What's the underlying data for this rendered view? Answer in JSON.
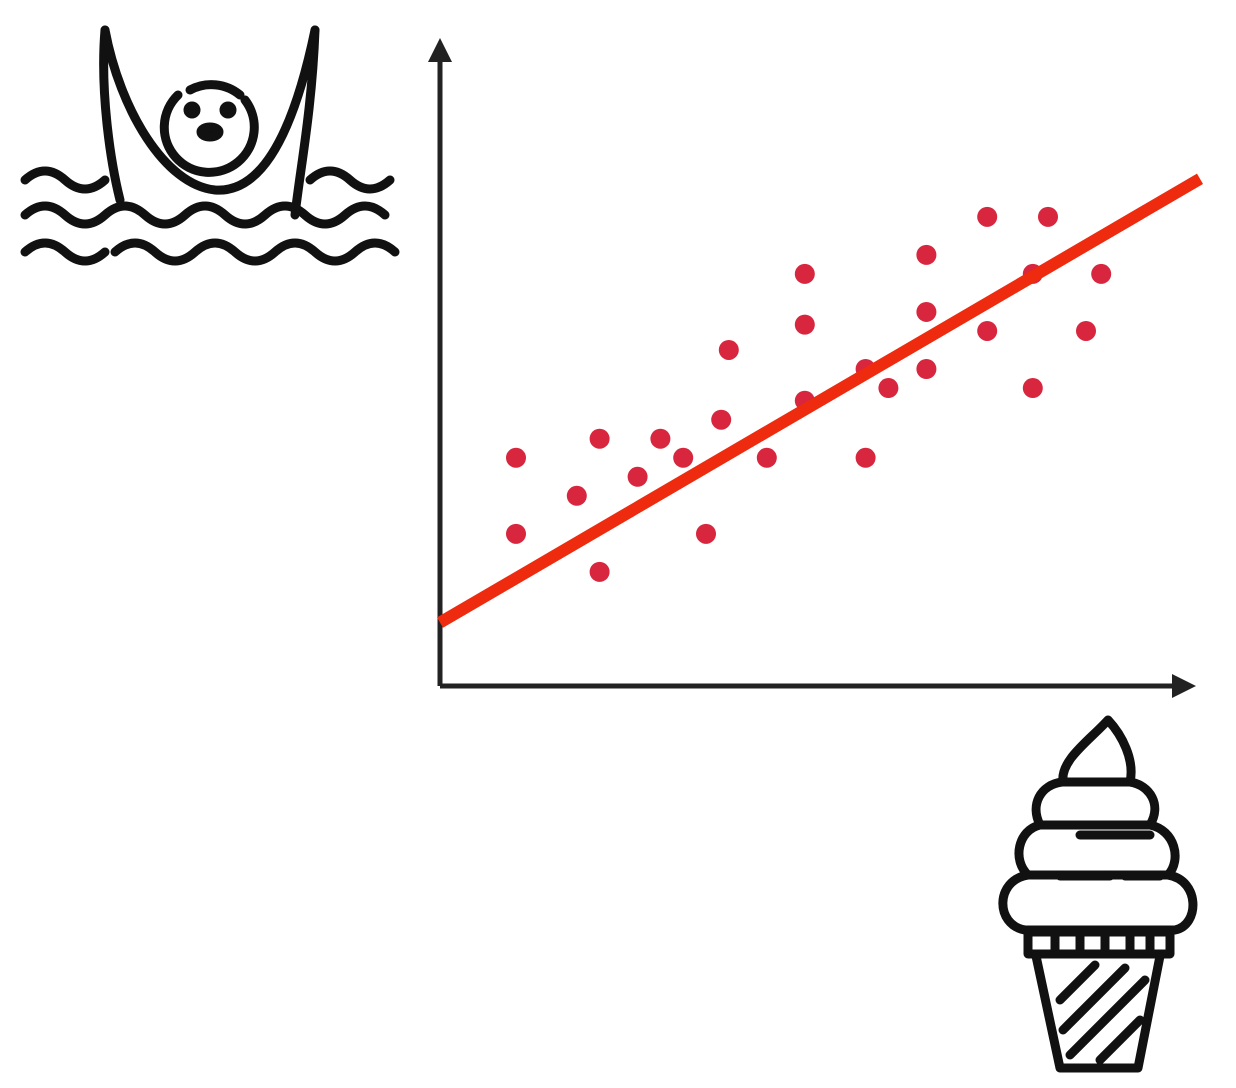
{
  "chart_data": {
    "type": "scatter",
    "title": "",
    "xlabel": "",
    "ylabel": "",
    "x_axis_icon": "ice-cream-cone-icon",
    "y_axis_icon": "drowning-person-icon",
    "grid": false,
    "xlim": [
      0,
      100
    ],
    "ylim": [
      0,
      100
    ],
    "series": [
      {
        "color": "#d7263d",
        "points": [
          [
            10,
            36
          ],
          [
            10,
            24
          ],
          [
            18,
            30
          ],
          [
            21,
            39
          ],
          [
            21,
            18
          ],
          [
            26,
            33
          ],
          [
            29,
            39
          ],
          [
            32,
            36
          ],
          [
            35,
            24
          ],
          [
            37,
            42
          ],
          [
            38,
            53
          ],
          [
            43,
            36
          ],
          [
            48,
            45
          ],
          [
            48,
            57
          ],
          [
            48,
            65
          ],
          [
            56,
            36
          ],
          [
            56,
            50
          ],
          [
            59,
            47
          ],
          [
            64,
            68
          ],
          [
            64,
            59
          ],
          [
            64,
            50
          ],
          [
            72,
            74
          ],
          [
            72,
            56
          ],
          [
            78,
            47
          ],
          [
            78,
            65
          ],
          [
            80,
            74
          ],
          [
            85,
            56
          ],
          [
            87,
            65
          ]
        ]
      }
    ],
    "trendline": {
      "color": "#ee2a0f",
      "x": [
        0,
        100
      ],
      "y": [
        10,
        80
      ]
    }
  }
}
